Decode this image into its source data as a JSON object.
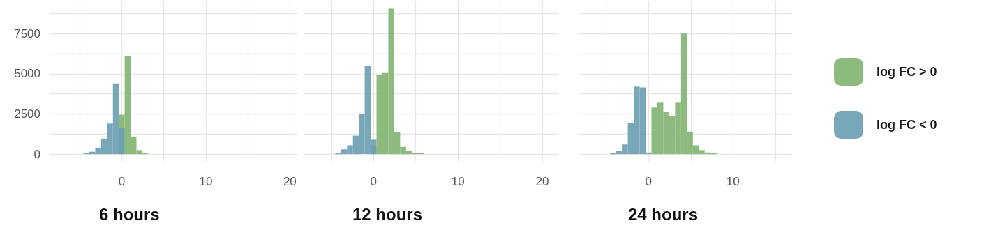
{
  "chart_data": [
    {
      "type": "histogram",
      "title": "6 hours",
      "bins": [
        -4.55,
        -3.85,
        -3.15,
        -2.45,
        -1.75,
        -1.05,
        -0.35,
        0.35,
        1.05,
        1.75,
        2.45,
        3.15,
        3.85
      ],
      "series": [
        {
          "color": "#7fb46f",
          "values": [
            0,
            0,
            0,
            0,
            0,
            0,
            2450,
            6100,
            1050,
            250,
            50,
            0
          ]
        },
        {
          "color": "#6a9db3",
          "values": [
            50,
            150,
            400,
            950,
            1900,
            4400,
            1650,
            0,
            0,
            0,
            0,
            0
          ]
        }
      ],
      "xlim": [
        -8.5,
        20.8
      ],
      "xticks": [
        {
          "value": -5,
          "label": null
        },
        0,
        {
          "value": 5,
          "label": null
        },
        10,
        {
          "value": 15,
          "label": null
        },
        20
      ],
      "ylim": [
        -450,
        9500
      ],
      "yticks": [
        0,
        {
          "value": 1250,
          "label": null
        },
        2500,
        {
          "value": 3750,
          "label": null
        },
        5000,
        {
          "value": 6250,
          "label": null
        },
        7500,
        {
          "value": 8750,
          "label": null
        }
      ],
      "grid": true
    },
    {
      "type": "histogram",
      "title": "12 hours",
      "bins": [
        -5.25,
        -4.55,
        -3.85,
        -3.15,
        -2.45,
        -1.75,
        -1.05,
        -0.35,
        0.35,
        1.05,
        1.75,
        2.45,
        3.15,
        3.85,
        4.55,
        5.25,
        5.95,
        6.65
      ],
      "series": [
        {
          "color": "#7fb46f",
          "values": [
            0,
            0,
            0,
            0,
            0,
            0,
            0,
            500,
            4950,
            5050,
            9050,
            1350,
            450,
            200,
            50,
            50,
            0
          ]
        },
        {
          "color": "#6a9db3",
          "values": [
            0,
            50,
            300,
            550,
            1150,
            2500,
            5500,
            900,
            0,
            0,
            0,
            0,
            0,
            0,
            0,
            0,
            0
          ]
        }
      ],
      "xlim": [
        -8.3,
        21.9
      ],
      "xticks": [
        {
          "value": -5,
          "label": null
        },
        0,
        {
          "value": 5,
          "label": null
        },
        10,
        {
          "value": 15,
          "label": null
        },
        20
      ],
      "ylim": [
        -450,
        9500
      ],
      "yticks": [
        0,
        {
          "value": 1250,
          "label": null
        },
        2500,
        {
          "value": 3750,
          "label": null
        },
        5000,
        {
          "value": 6250,
          "label": null
        },
        7500,
        {
          "value": 8750,
          "label": null
        }
      ],
      "grid": true,
      "tick_labels": "x"
    },
    {
      "type": "histogram",
      "title": "24 hours",
      "bins": [
        -5.25,
        -4.55,
        -3.85,
        -3.15,
        -2.45,
        -1.75,
        -1.05,
        -0.35,
        0.35,
        1.05,
        1.75,
        2.45,
        3.15,
        3.85,
        4.55,
        5.25,
        5.95,
        6.65,
        7.35,
        8.05,
        8.75
      ],
      "series": [
        {
          "name": "log FC > 0",
          "color": "#7fb46f",
          "values": [
            0,
            0,
            0,
            0,
            0,
            0,
            0,
            null,
            2900,
            3200,
            2650,
            2350,
            3200,
            7500,
            1400,
            550,
            250,
            100,
            50,
            0
          ]
        },
        {
          "name": "log FC < 0",
          "color": "#6a9db3",
          "values": [
            0,
            50,
            200,
            600,
            1950,
            4200,
            4150,
            100,
            0,
            0,
            0,
            0,
            0,
            0,
            0,
            0,
            0,
            0,
            0,
            0
          ]
        }
      ],
      "xlim": [
        -8.2,
        17
      ],
      "xticks": [
        {
          "value": -5,
          "label": null
        },
        0,
        {
          "value": 5,
          "label": null
        },
        10,
        {
          "value": 15,
          "label": null
        }
      ],
      "ylim": [
        -450,
        9500
      ],
      "yticks": [
        0,
        {
          "value": 1250,
          "label": null
        },
        2500,
        {
          "value": 3750,
          "label": null
        },
        5000,
        {
          "value": 6250,
          "label": null
        },
        7500,
        {
          "value": 8750,
          "label": null
        }
      ],
      "grid": true,
      "tick_labels": "x",
      "legend": "right"
    }
  ]
}
